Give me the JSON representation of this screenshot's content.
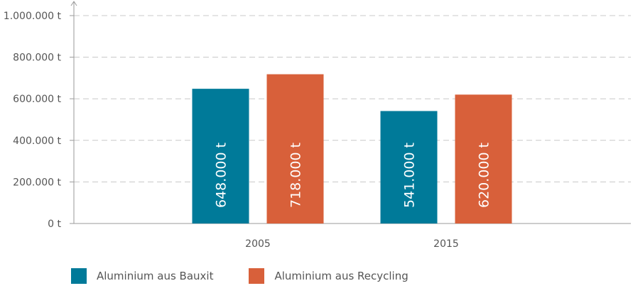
{
  "chart_data": {
    "type": "bar",
    "categories": [
      "2005",
      "2015"
    ],
    "series": [
      {
        "name": "Aluminium aus Bauxit",
        "color": "#007a99",
        "values": [
          648000,
          541000
        ],
        "labels": [
          "648.000 t",
          "541.000 t"
        ]
      },
      {
        "name": "Aluminium aus Recycling",
        "color": "#d8603a",
        "values": [
          718000,
          620000
        ],
        "labels": [
          "718.000 t",
          "620.000 t"
        ]
      }
    ],
    "yticks": [
      0,
      200000,
      400000,
      600000,
      800000,
      1000000
    ],
    "ytick_labels": [
      "0 t",
      "200.000 t",
      "400.000 t",
      "600.000 t",
      "800.000 t",
      "1.000.000 t"
    ],
    "ylim": [
      0,
      1000000
    ],
    "title": "",
    "xlabel": "",
    "ylabel": "",
    "grid": "dashed horizontal",
    "legend_position": "bottom-left",
    "axis_color": "#9a9a9a",
    "grid_color": "#c8c8c8"
  }
}
